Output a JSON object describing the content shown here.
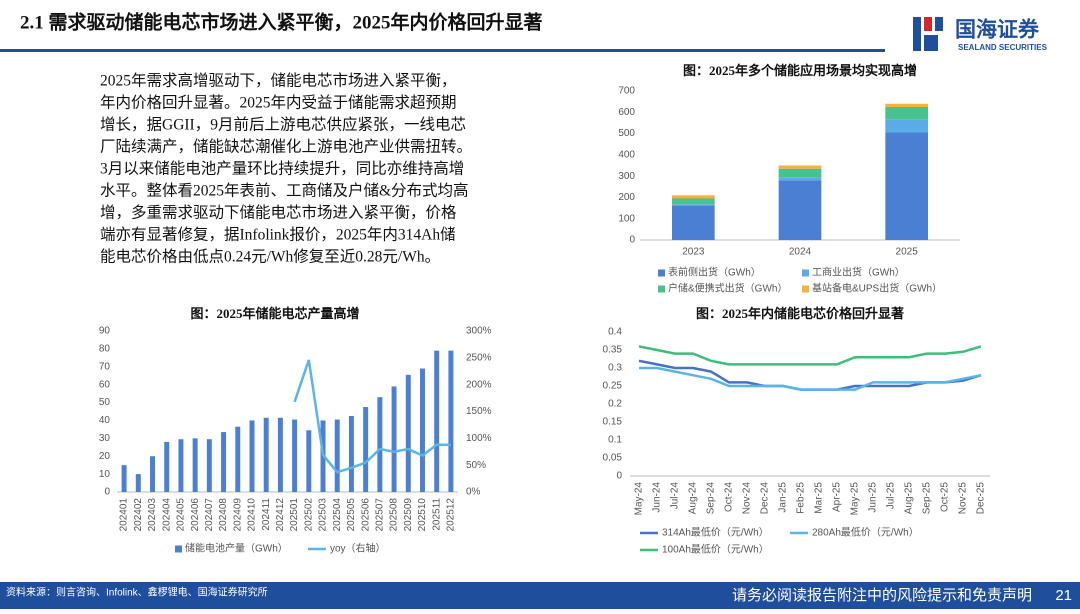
{
  "header": {
    "title": "2.1 需求驱动储能电芯市场进入紧平衡，2025年内价格回升显著",
    "logo": "国海证券",
    "logo_sub": "SEALAND SECURITIES"
  },
  "body": {
    "lines": [
      "2025年需求高增驱动下，储能电芯市场进入紧平衡，",
      "年内价格回升显著。2025年内受益于储能需求超预期",
      "增长，据GGII，9月前后上游电芯供应紧张，一线电芯",
      "厂陆续满产，储能缺芯潮催化上游电池产业供需扭转。",
      "3月以来储能电池产量环比持续提升，同比亦维持高增",
      "水平。整体看2025年表前、工商储及户储&分布式均高",
      "增，多重需求驱动下储能电芯市场进入紧平衡，价格",
      "端亦有显著修复，据Infolink报价，2025年内314Ah储",
      "能电芯价格由低点0.24元/Wh修复至近0.28元/Wh。"
    ]
  },
  "chart_data": [
    {
      "type": "bar",
      "stacked": true,
      "title": "图：2025年多个储能应用场景均实现高增",
      "categories": [
        "2023",
        "2024",
        "2025"
      ],
      "series": [
        {
          "name": "表前侧出货（GWh）",
          "color": "#4a7fd4",
          "values": [
            163,
            280,
            505
          ]
        },
        {
          "name": "工商业出货（GWh）",
          "color": "#5aabe8",
          "values": [
            5,
            15,
            60
          ]
        },
        {
          "name": "户储&便携式出货（GWh）",
          "color": "#47c28e",
          "values": [
            27,
            40,
            60
          ]
        },
        {
          "name": "基站备电&UPS出货（GWh）",
          "color": "#f5b042",
          "values": [
            15,
            15,
            15
          ]
        }
      ],
      "ylim": [
        0,
        700
      ],
      "yticks": [
        0,
        100,
        200,
        300,
        400,
        500,
        600,
        700
      ],
      "grid": false
    },
    {
      "type": "combo",
      "title": "图：2025年储能电芯产量高增",
      "categories": [
        "202401",
        "202402",
        "202403",
        "202404",
        "202405",
        "202406",
        "202407",
        "202408",
        "202409",
        "202410",
        "202411",
        "202412",
        "202501",
        "202502",
        "202503",
        "202504",
        "202505",
        "202506",
        "202507",
        "202508",
        "202509",
        "202510",
        "202511",
        "202512"
      ],
      "series": [
        {
          "name": "储能电池产量（GWh）",
          "type": "bar",
          "color": "#4a7fd4",
          "values": [
            15,
            10,
            20,
            28,
            29.5,
            30,
            29.5,
            33.5,
            36.5,
            40,
            41.5,
            41.5,
            40.5,
            34.5,
            40,
            40.5,
            42.5,
            47.5,
            53,
            59,
            65.5,
            69,
            79,
            79
          ]
        },
        {
          "name": "yoy（右轴）",
          "type": "line",
          "axis": "y2",
          "color": "#5ab4e8",
          "values": [
            null,
            null,
            null,
            null,
            null,
            null,
            null,
            null,
            null,
            null,
            null,
            null,
            168,
            246,
            69,
            37,
            45,
            55,
            80,
            75,
            80,
            68,
            88,
            88
          ]
        }
      ],
      "ylim": [
        0,
        90
      ],
      "yticks": [
        0,
        10,
        20,
        30,
        40,
        50,
        60,
        70,
        80,
        90
      ],
      "y2lim": [
        0,
        300
      ],
      "y2ticks": [
        {
          "value": 0,
          "label": "0%"
        },
        {
          "value": 50,
          "label": "50%"
        },
        {
          "value": 100,
          "label": "100%"
        },
        {
          "value": 150,
          "label": "150%"
        },
        {
          "value": 200,
          "label": "200%"
        },
        {
          "value": 250,
          "label": "250%"
        },
        {
          "value": 300,
          "label": "300%"
        }
      ],
      "grid": false
    },
    {
      "type": "line",
      "title": "图：2025年内储能电芯价格回升显著",
      "categories": [
        "May-24",
        "Jun-24",
        "Jul-24",
        "Aug-24",
        "Sep-24",
        "Oct-24",
        "Nov-24",
        "Dec-24",
        "Jan-25",
        "Feb-25",
        "Mar-25",
        "Apr-25",
        "May-25",
        "Jun-25",
        "Jul-25",
        "Aug-25",
        "Sep-25",
        "Oct-25",
        "Nov-25",
        "Dec-25"
      ],
      "series": [
        {
          "name": "314Ah最低价（元/Wh）",
          "color": "#4472c4",
          "values": [
            0.32,
            0.31,
            0.3,
            0.3,
            0.29,
            0.26,
            0.26,
            0.25,
            0.25,
            0.24,
            0.24,
            0.24,
            0.25,
            0.25,
            0.25,
            0.25,
            0.26,
            0.26,
            0.265,
            0.28
          ]
        },
        {
          "name": "280Ah最低价（元/Wh）",
          "color": "#5ab4e8",
          "values": [
            0.3,
            0.3,
            0.29,
            0.28,
            0.27,
            0.25,
            0.25,
            0.25,
            0.25,
            0.24,
            0.24,
            0.24,
            0.24,
            0.26,
            0.26,
            0.26,
            0.26,
            0.26,
            0.27,
            0.28
          ]
        },
        {
          "name": "100Ah最低价（元/Wh）",
          "color": "#3cbf7a",
          "values": [
            0.36,
            0.35,
            0.34,
            0.34,
            0.32,
            0.31,
            0.31,
            0.31,
            0.31,
            0.31,
            0.31,
            0.31,
            0.33,
            0.33,
            0.33,
            0.33,
            0.34,
            0.34,
            0.345,
            0.36
          ]
        }
      ],
      "ylim": [
        0,
        0.4
      ],
      "yticks": [
        0,
        0.05,
        0.1,
        0.15,
        0.2,
        0.25,
        0.3,
        0.35,
        0.4
      ],
      "grid": false
    }
  ],
  "footer": {
    "source": "资料来源：则言咨询、Infolink、鑫椤锂电、国海证券研究所",
    "disclaimer": "请务必阅读报告附注中的风险提示和免责声明",
    "page": "21"
  }
}
